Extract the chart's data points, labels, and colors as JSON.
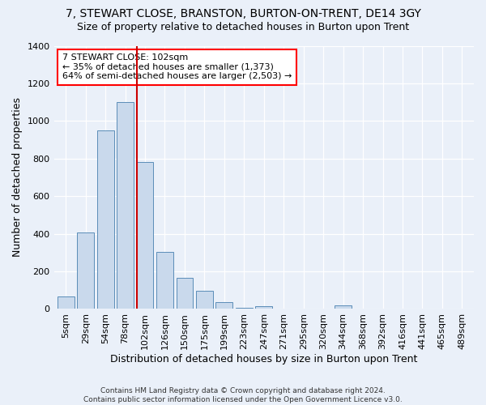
{
  "title": "7, STEWART CLOSE, BRANSTON, BURTON-ON-TRENT, DE14 3GY",
  "subtitle": "Size of property relative to detached houses in Burton upon Trent",
  "xlabel": "Distribution of detached houses by size in Burton upon Trent",
  "ylabel": "Number of detached properties",
  "footer1": "Contains HM Land Registry data © Crown copyright and database right 2024.",
  "footer2": "Contains public sector information licensed under the Open Government Licence v3.0.",
  "bar_labels": [
    "5sqm",
    "29sqm",
    "54sqm",
    "78sqm",
    "102sqm",
    "126sqm",
    "150sqm",
    "175sqm",
    "199sqm",
    "223sqm",
    "247sqm",
    "271sqm",
    "295sqm",
    "320sqm",
    "344sqm",
    "368sqm",
    "392sqm",
    "416sqm",
    "441sqm",
    "465sqm",
    "489sqm"
  ],
  "bar_values": [
    65,
    405,
    950,
    1100,
    780,
    305,
    165,
    95,
    35,
    5,
    15,
    0,
    0,
    0,
    20,
    0,
    0,
    0,
    0,
    0,
    0
  ],
  "bar_color": "#c9d9ec",
  "bar_edge_color": "#5b8db8",
  "highlight_index": 4,
  "highlight_color": "#cc0000",
  "annotation_text": "7 STEWART CLOSE: 102sqm\n← 35% of detached houses are smaller (1,373)\n64% of semi-detached houses are larger (2,503) →",
  "ylim": [
    0,
    1400
  ],
  "yticks": [
    0,
    200,
    400,
    600,
    800,
    1000,
    1200,
    1400
  ],
  "background_color": "#eaf0f9",
  "axes_background": "#eaf0f9",
  "grid_color": "#ffffff",
  "title_fontsize": 10,
  "subtitle_fontsize": 9,
  "label_fontsize": 9,
  "tick_fontsize": 8
}
